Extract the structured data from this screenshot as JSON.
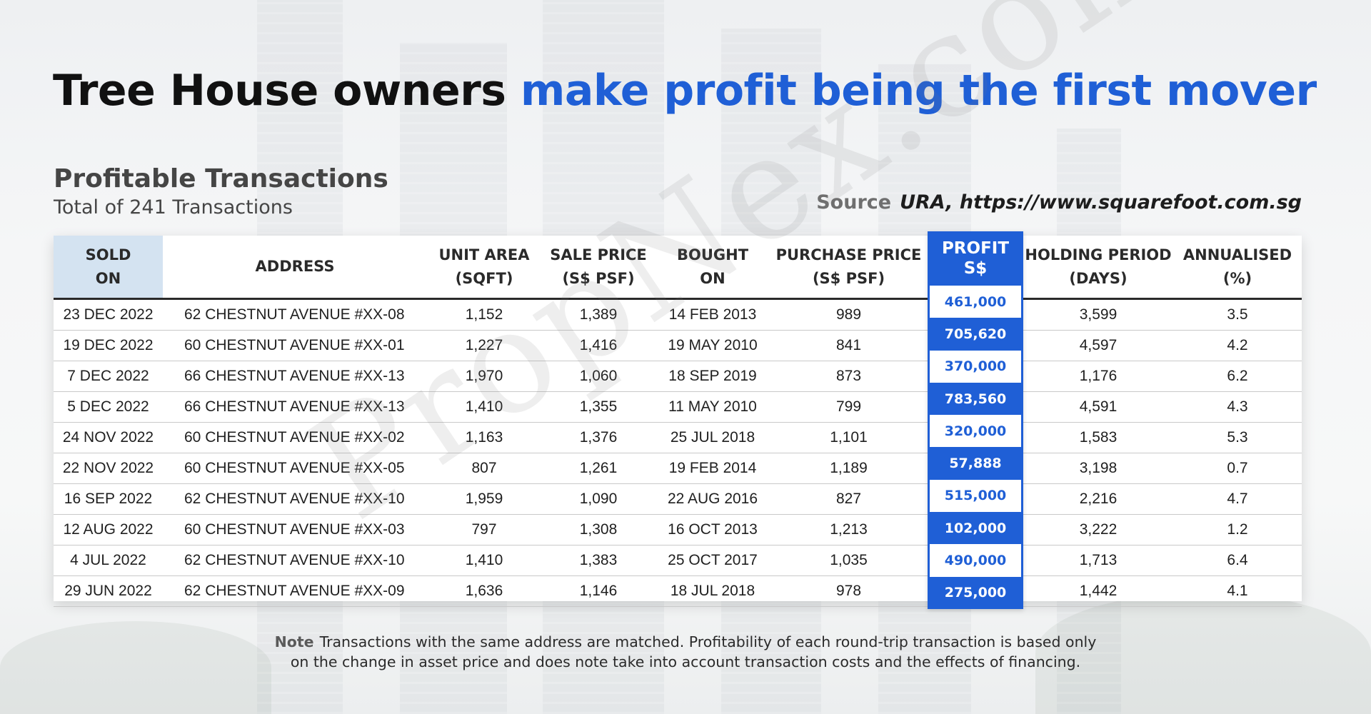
{
  "title": {
    "part1": "Tree House owners",
    "part2": "make profit being the first mover"
  },
  "section": {
    "title": "Profitable Transactions",
    "count_text": "Total of 241 Transactions"
  },
  "source": {
    "label": "Source",
    "value": "URA, https://www.squarefoot.com.sg"
  },
  "table": {
    "headers": {
      "sold": [
        "SOLD",
        "ON"
      ],
      "address": [
        "ADDRESS"
      ],
      "area": [
        "UNIT AREA",
        "(SQFT)"
      ],
      "sale": [
        "SALE PRICE",
        "(S$ PSF)"
      ],
      "bought": [
        "BOUGHT",
        "ON"
      ],
      "purchase": [
        "PURCHASE PRICE",
        "(S$ PSF)"
      ],
      "profit": [
        "PROFIT",
        "S$"
      ],
      "holding": [
        "HOLDING PERIOD",
        "(DAYS)"
      ],
      "annualised": [
        "ANNUALISED",
        "(%)"
      ]
    },
    "rows": [
      {
        "sold": "23 DEC 2022",
        "address": "62 CHESTNUT AVENUE #XX-08",
        "area": "1,152",
        "sale": "1,389",
        "bought": "14 FEB 2013",
        "purchase": "989",
        "profit": "461,000",
        "holding": "3,599",
        "annualised": "3.5"
      },
      {
        "sold": "19 DEC 2022",
        "address": "60 CHESTNUT AVENUE #XX-01",
        "area": "1,227",
        "sale": "1,416",
        "bought": "19 MAY 2010",
        "purchase": "841",
        "profit": "705,620",
        "holding": "4,597",
        "annualised": "4.2"
      },
      {
        "sold": "7 DEC 2022",
        "address": "66 CHESTNUT AVENUE #XX-13",
        "area": "1,970",
        "sale": "1,060",
        "bought": "18 SEP 2019",
        "purchase": "873",
        "profit": "370,000",
        "holding": "1,176",
        "annualised": "6.2"
      },
      {
        "sold": "5 DEC 2022",
        "address": "66 CHESTNUT AVENUE #XX-13",
        "area": "1,410",
        "sale": "1,355",
        "bought": "11 MAY 2010",
        "purchase": "799",
        "profit": "783,560",
        "holding": "4,591",
        "annualised": "4.3"
      },
      {
        "sold": "24 NOV 2022",
        "address": "60 CHESTNUT AVENUE #XX-02",
        "area": "1,163",
        "sale": "1,376",
        "bought": "25 JUL 2018",
        "purchase": "1,101",
        "profit": "320,000",
        "holding": "1,583",
        "annualised": "5.3"
      },
      {
        "sold": "22 NOV 2022",
        "address": "60 CHESTNUT AVENUE #XX-05",
        "area": "807",
        "sale": "1,261",
        "bought": "19 FEB 2014",
        "purchase": "1,189",
        "profit": "57,888",
        "holding": "3,198",
        "annualised": "0.7"
      },
      {
        "sold": "16 SEP 2022",
        "address": "62 CHESTNUT AVENUE #XX-10",
        "area": "1,959",
        "sale": "1,090",
        "bought": "22 AUG 2016",
        "purchase": "827",
        "profit": "515,000",
        "holding": "2,216",
        "annualised": "4.7"
      },
      {
        "sold": "12 AUG 2022",
        "address": "60 CHESTNUT AVENUE #XX-03",
        "area": "797",
        "sale": "1,308",
        "bought": "16 OCT 2013",
        "purchase": "1,213",
        "profit": "102,000",
        "holding": "3,222",
        "annualised": "1.2"
      },
      {
        "sold": "4 JUL 2022",
        "address": "62 CHESTNUT AVENUE #XX-10",
        "area": "1,410",
        "sale": "1,383",
        "bought": "25 OCT 2017",
        "purchase": "1,035",
        "profit": "490,000",
        "holding": "1,713",
        "annualised": "6.4"
      },
      {
        "sold": "29 JUN 2022",
        "address": "62 CHESTNUT AVENUE #XX-09",
        "area": "1,636",
        "sale": "1,146",
        "bought": "18 JUL 2018",
        "purchase": "978",
        "profit": "275,000",
        "holding": "1,442",
        "annualised": "4.1"
      }
    ]
  },
  "watermark": "PropNex.com",
  "note": {
    "label": "Note",
    "line1": "Transactions with the same address are matched. Profitability of each round-trip transaction is based only",
    "line2": "on the change in asset price and does note take into account transaction costs and the effects of financing."
  },
  "colors": {
    "accent_blue": "#1f5fd6",
    "sold_header_bg": "#d4e3f1",
    "title_dark": "#111111"
  }
}
